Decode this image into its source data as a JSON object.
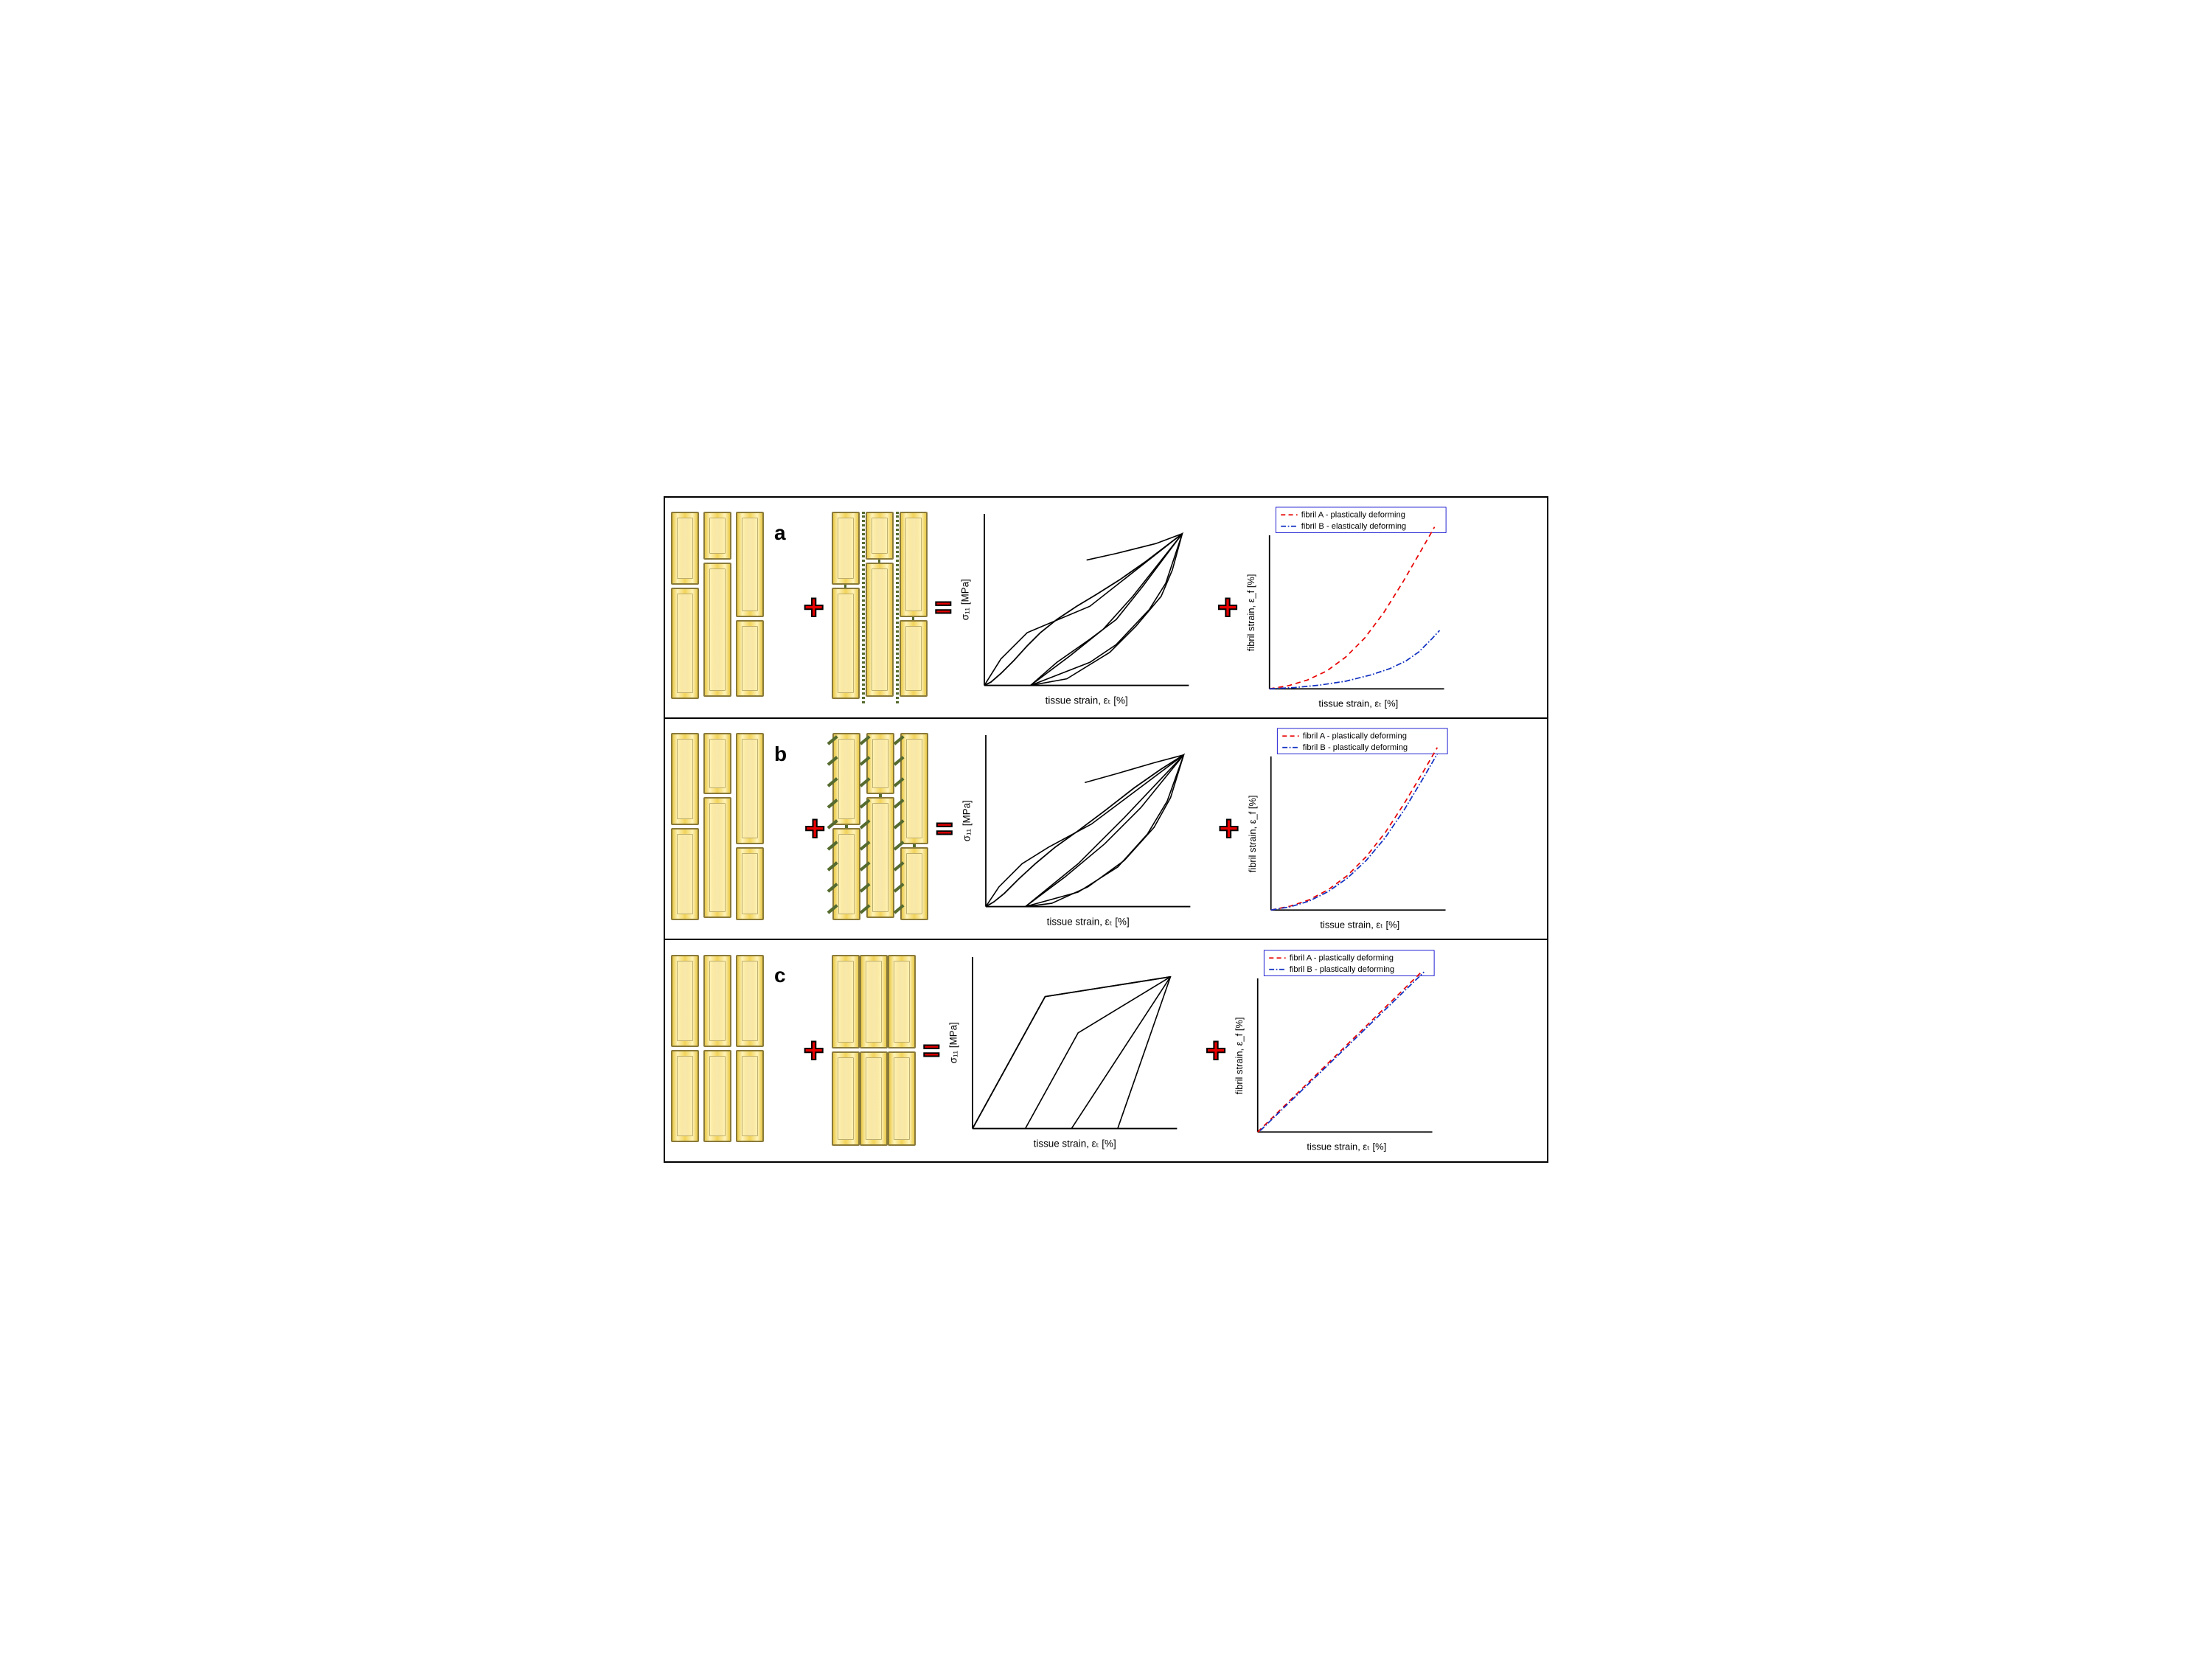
{
  "panels": [
    {
      "label": "a",
      "legendB": "fibril B - elastically deforming",
      "legendA": "fibril A - plastically deforming",
      "crosslink": "dotted"
    },
    {
      "label": "b",
      "legendB": "fibril B - plastically deforming",
      "legendA": "fibril A - plastically deforming",
      "crosslink": "dashed"
    },
    {
      "label": "c",
      "legendB": "fibril B - plastically deforming",
      "legendA": "fibril A - plastically deforming",
      "crosslink": "none"
    }
  ],
  "axis": {
    "stress_y": "σ₁₁ [MPa]",
    "strain_x": "tissue strain, εₜ [%]",
    "fibril_y": "fibril strain, ε_f [%]",
    "fibril_x": "tissue strain, εₜ [%]"
  },
  "colors": {
    "fibril_fill": "#f2d35a",
    "fibril_border": "#8a7a3a",
    "crosslink": "#556b2f",
    "op": "#e80000",
    "line_red": "#e80000",
    "line_blue": "#1030c0",
    "axis": "#000000",
    "legend_border": "#0000cc"
  },
  "stress_strain": {
    "a": {
      "loops": [
        "0,260 25,220 65,180 160,140 300,30 275,105 250,145 200,198 160,225 70,260",
        "70,260 110,225 160,190 200,160 240,110 300,30 285,85 268,125 230,170 190,210 125,250 70,260",
        "70,260 130,215 180,175 225,125 300,30",
        "155,70 200,60 260,45 300,30"
      ],
      "toe": "0,260 10,255 25,242 45,222 65,200 85,180 110,160 140,140 170,122 205,100 245,72 300,30"
    },
    "b": {
      "loops": [
        "0,260 20,230 55,195 95,170 160,135 300,30 275,100 245,150 200,200 140,238 60,260",
        "60,260 120,215 180,165 235,110 300,30 280,95 255,140 210,190 155,230 100,255 60,260",
        "60,260 140,195 210,125 300,30",
        "150,72 200,58 255,42 300,30"
      ],
      "toe": "0,260 12,253 28,240 50,218 75,195 105,170 140,145 180,115 225,80 265,52 300,30"
    },
    "c": {
      "loops": [
        "0,260 110,60 300,30 220,260",
        "80,260 160,115 300,30",
        "150,260 300,30"
      ],
      "toe": "0,260 110,60 300,30"
    }
  },
  "fibril_strain": {
    "a": {
      "red": "0,260 30,255 60,246 90,232 120,210 150,180 180,140 210,92 240,40 260,5",
      "blue": "0,260 40,258 80,254 120,248 160,238 190,228 215,216 235,202 255,182 268,168"
    },
    "b": {
      "red": "0,260 30,254 60,244 90,228 120,206 150,176 180,138 210,92 240,42 262,4",
      "blue": "0,260 30,255 60,246 90,231 120,210 150,182 180,146 210,102 240,52 262,14"
    },
    "c": {
      "red": "0,260 260,6",
      "blue": "4,258 262,8"
    }
  }
}
